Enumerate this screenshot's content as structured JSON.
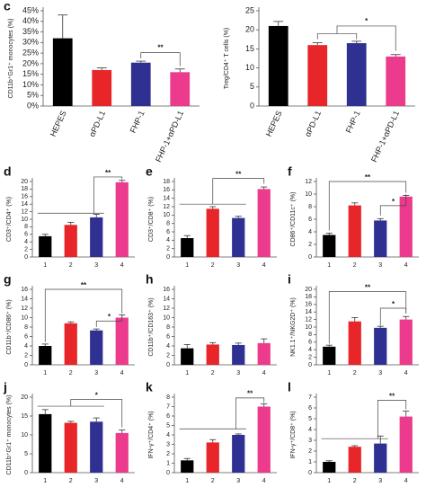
{
  "chart_data": [
    {
      "type": "bar",
      "panel_label": "c",
      "y_label": "CD11b⁺Gr1⁺ monocytes (%)",
      "categories": [
        "HEPES",
        "αPD-L1",
        "FHP-1",
        "FHP-1+αPD-L1"
      ],
      "values": [
        32,
        17,
        20.5,
        16
      ],
      "errors": [
        11,
        1,
        0.7,
        1.5
      ],
      "colors": [
        "#000000",
        "#e8262a",
        "#2e3192",
        "#ec3a8d"
      ],
      "ylim": [
        0,
        45
      ],
      "yticks": [
        {
          "value": 0,
          "label": "0%"
        },
        {
          "value": 5,
          "label": "5%"
        },
        {
          "value": 10,
          "label": "10%"
        },
        {
          "value": 15,
          "label": "15%"
        },
        {
          "value": 20,
          "label": "20%"
        },
        {
          "value": 25,
          "label": "25%"
        },
        {
          "value": 30,
          "label": "30%"
        },
        {
          "value": 35,
          "label": "35%"
        },
        {
          "value": 40,
          "label": "40%"
        },
        {
          "value": 45,
          "label": "45%"
        }
      ],
      "annotations": [
        "**"
      ]
    },
    {
      "type": "bar",
      "y_label": "Treg/CD4⁺ T cells (%)",
      "categories": [
        "HEPES",
        "αPD-L1",
        "FHP-1",
        "FHP-1+αPD-L1"
      ],
      "values": [
        21,
        16,
        16.5,
        13
      ],
      "errors": [
        1.2,
        0.6,
        0.5,
        0.5
      ],
      "colors": [
        "#000000",
        "#e8262a",
        "#2e3192",
        "#ec3a8d"
      ],
      "ylim": [
        0,
        25
      ],
      "yticks": [
        0,
        5,
        10,
        15,
        20,
        25
      ],
      "annotations": [
        "*"
      ]
    },
    {
      "type": "bar",
      "panel_label": "d",
      "y_label": "CD3⁺/CD4⁺ (%)",
      "categories": [
        "1",
        "2",
        "3",
        "4"
      ],
      "values": [
        5.5,
        8.5,
        10.5,
        19.8
      ],
      "errors": [
        0.5,
        0.7,
        0.8,
        0.5
      ],
      "colors": [
        "#000000",
        "#e8262a",
        "#2e3192",
        "#ec3a8d"
      ],
      "ylim": [
        0,
        20
      ],
      "yticks": [
        0,
        2,
        4,
        6,
        8,
        10,
        12,
        14,
        16,
        18,
        20
      ],
      "annotations": [
        "**"
      ]
    },
    {
      "type": "bar",
      "panel_label": "e",
      "y_label": "CD3⁺/CD8⁺ (%)",
      "categories": [
        "1",
        "2",
        "3",
        "4"
      ],
      "values": [
        4.5,
        11.5,
        9.3,
        16.2
      ],
      "errors": [
        0.6,
        0.5,
        0.4,
        0.5
      ],
      "colors": [
        "#000000",
        "#e8262a",
        "#2e3192",
        "#ec3a8d"
      ],
      "ylim": [
        0,
        18
      ],
      "yticks": [
        0,
        2,
        4,
        6,
        8,
        10,
        12,
        14,
        16,
        18
      ],
      "annotations": [
        "**"
      ]
    },
    {
      "type": "bar",
      "panel_label": "f",
      "y_label": "CD86⁺/CD11c⁺ (%)",
      "categories": [
        "1",
        "2",
        "3",
        "4"
      ],
      "values": [
        3.5,
        8.2,
        5.8,
        9.6
      ],
      "errors": [
        0.3,
        0.4,
        0.3,
        0.2
      ],
      "colors": [
        "#000000",
        "#e8262a",
        "#2e3192",
        "#ec3a8d"
      ],
      "ylim": [
        0,
        12
      ],
      "yticks": [
        0,
        2,
        4,
        6,
        8,
        10,
        12
      ],
      "annotations": [
        "**",
        "*"
      ]
    },
    {
      "type": "bar",
      "panel_label": "g",
      "y_label": "CD11b⁺/CD86⁺ (%)",
      "categories": [
        "1",
        "2",
        "3",
        "4"
      ],
      "values": [
        4,
        8.8,
        7.3,
        10
      ],
      "errors": [
        0.4,
        0.3,
        0.3,
        0.6
      ],
      "colors": [
        "#000000",
        "#e8262a",
        "#2e3192",
        "#ec3a8d"
      ],
      "ylim": [
        0,
        16
      ],
      "yticks": [
        0,
        2,
        4,
        6,
        8,
        10,
        12,
        14,
        16
      ],
      "annotations": [
        "**",
        "*"
      ]
    },
    {
      "type": "bar",
      "panel_label": "h",
      "y_label": "CD11b⁺/CD163⁺ (%)",
      "categories": [
        "1",
        "2",
        "3",
        "4"
      ],
      "values": [
        3.5,
        4.3,
        4.2,
        4.6
      ],
      "errors": [
        0.8,
        0.4,
        0.4,
        0.9
      ],
      "colors": [
        "#000000",
        "#e8262a",
        "#2e3192",
        "#ec3a8d"
      ],
      "ylim": [
        0,
        16
      ],
      "yticks": [
        0,
        2,
        4,
        6,
        8,
        10,
        12,
        14,
        16
      ],
      "annotations": []
    },
    {
      "type": "bar",
      "panel_label": "i",
      "y_label": "NK1.1⁺/NKG2D⁺ (%)",
      "categories": [
        "1",
        "2",
        "3",
        "4"
      ],
      "values": [
        4.8,
        11.5,
        9.8,
        12
      ],
      "errors": [
        0.4,
        1,
        0.4,
        0.8
      ],
      "colors": [
        "#000000",
        "#e8262a",
        "#2e3192",
        "#ec3a8d"
      ],
      "ylim": [
        0,
        20
      ],
      "yticks": [
        0,
        2,
        4,
        6,
        8,
        10,
        12,
        14,
        16,
        18,
        20
      ],
      "annotations": [
        "**",
        "*"
      ]
    },
    {
      "type": "bar",
      "panel_label": "j",
      "y_label": "CD11b⁺Gr1⁺ monocytes (%)",
      "categories": [
        "1",
        "2",
        "3",
        "4"
      ],
      "values": [
        15.5,
        13.2,
        13.5,
        10.5
      ],
      "errors": [
        1.2,
        0.4,
        1,
        0.8
      ],
      "colors": [
        "#000000",
        "#e8262a",
        "#2e3192",
        "#ec3a8d"
      ],
      "ylim": [
        0,
        20
      ],
      "yticks": [
        0,
        5,
        10,
        15,
        20
      ],
      "annotations": [
        "*"
      ]
    },
    {
      "type": "bar",
      "panel_label": "k",
      "y_label": "IFN-γ⁺/CD4⁺ (%)",
      "categories": [
        "1",
        "2",
        "3",
        "4"
      ],
      "values": [
        1.3,
        3.2,
        4,
        7
      ],
      "errors": [
        0.2,
        0.3,
        0.1,
        0.3
      ],
      "colors": [
        "#000000",
        "#e8262a",
        "#2e3192",
        "#ec3a8d"
      ],
      "ylim": [
        0,
        8
      ],
      "yticks": [
        0,
        1,
        2,
        3,
        4,
        5,
        6,
        7,
        8
      ],
      "annotations": [
        "**"
      ]
    },
    {
      "type": "bar",
      "panel_label": "l",
      "y_label": "IFN-γ⁺/CD8⁺ (%)",
      "categories": [
        "1",
        "2",
        "3",
        "4"
      ],
      "values": [
        1,
        2.4,
        2.7,
        5.2
      ],
      "errors": [
        0.1,
        0.1,
        0.7,
        0.5
      ],
      "colors": [
        "#000000",
        "#e8262a",
        "#2e3192",
        "#ec3a8d"
      ],
      "ylim": [
        0,
        7
      ],
      "yticks": [
        0,
        1,
        2,
        3,
        4,
        5,
        6,
        7
      ],
      "annotations": [
        "**"
      ]
    }
  ]
}
